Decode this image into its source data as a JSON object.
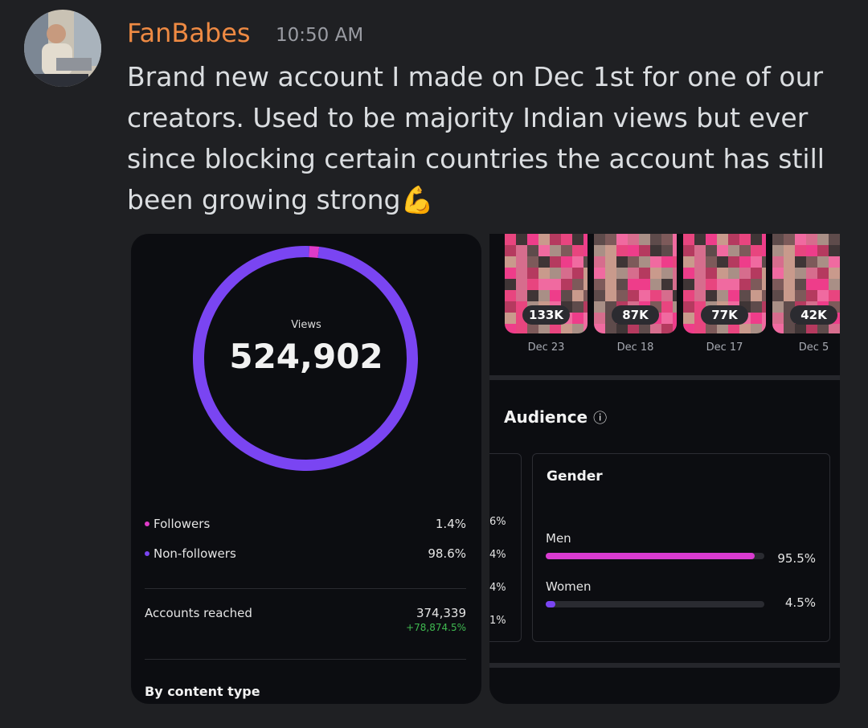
{
  "message": {
    "author": "FanBabes",
    "time": "10:50 AM",
    "text": "Brand new account I made on Dec 1st for one of our creators. Used to be majority Indian views but ever since blocking certain countries the account has still been growing strong💪"
  },
  "views_card": {
    "label": "Views",
    "total": "524,902",
    "breakdown": [
      {
        "name": "Followers",
        "value": 1.4,
        "value_label": "1.4%"
      },
      {
        "name": "Non-followers",
        "value": 98.6,
        "value_label": "98.6%"
      }
    ],
    "accounts_reached": {
      "label": "Accounts reached",
      "value": "374,339",
      "change": "+78,874.5%"
    },
    "section": "By content type"
  },
  "audience_card": {
    "reels": [
      {
        "views": "133K",
        "date": "Dec 23"
      },
      {
        "views": "87K",
        "date": "Dec 18"
      },
      {
        "views": "77K",
        "date": "Dec 17"
      },
      {
        "views": "42K",
        "date": "Dec 5"
      }
    ],
    "title": "Audience",
    "partial_values": [
      "6%",
      "4%",
      "4%",
      "1%"
    ],
    "gender": {
      "title": "Gender",
      "groups": [
        {
          "name": "Men",
          "value": 95.5,
          "value_label": "95.5%"
        },
        {
          "name": "Women",
          "value": 4.5,
          "value_label": "4.5%"
        }
      ]
    }
  }
}
